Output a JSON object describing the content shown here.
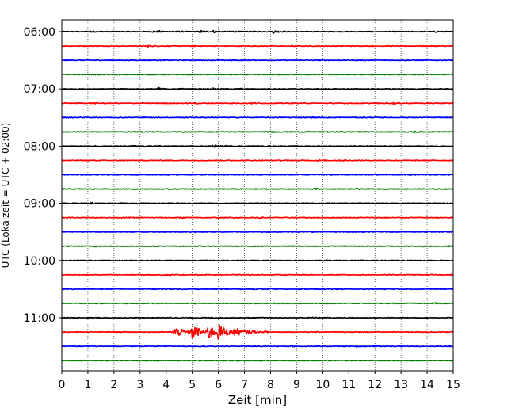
{
  "chart_data": {
    "type": "line",
    "title": "",
    "xlabel": "Zeit  [min]",
    "ylabel": "UTC (Lokalzeit = UTC + 02:00)",
    "xlim": [
      0,
      15
    ],
    "x_ticks": [
      0,
      1,
      2,
      3,
      4,
      5,
      6,
      7,
      8,
      9,
      10,
      11,
      12,
      13,
      14,
      15
    ],
    "x_gridlines": "dotted at every minute",
    "y_ticks": [
      "06:00",
      "07:00",
      "08:00",
      "09:00",
      "10:00",
      "11:00"
    ],
    "trace_interval_minutes": 15,
    "trace_colors": [
      "#000000",
      "#ff0000",
      "#0000ff",
      "#008000"
    ],
    "traces": [
      {
        "start": "06:00",
        "bursts": [
          [
            1.1,
            0.5
          ],
          [
            3.5,
            0.3
          ],
          [
            3.7,
            0.4
          ],
          [
            4.3,
            0.5
          ],
          [
            5.3,
            0.7
          ],
          [
            5.8,
            0.6
          ],
          [
            6.5,
            0.5
          ],
          [
            8.1,
            0.9
          ],
          [
            14.3,
            0.3
          ]
        ]
      },
      {
        "start": "06:15",
        "bursts": [
          [
            3.3,
            0.6
          ],
          [
            5.0,
            0.2
          ],
          [
            8.8,
            0.2
          ]
        ]
      },
      {
        "start": "06:30",
        "bursts": [
          [
            6.5,
            0.2
          ]
        ]
      },
      {
        "start": "06:45",
        "bursts": [
          [
            8.8,
            0.2
          ],
          [
            14.8,
            0.4
          ]
        ]
      },
      {
        "start": "07:00",
        "bursts": [
          [
            2.3,
            0.3
          ],
          [
            3.7,
            0.7
          ],
          [
            4.5,
            0.4
          ],
          [
            5.8,
            0.3
          ],
          [
            6.8,
            0.3
          ]
        ]
      },
      {
        "start": "07:15",
        "bursts": [
          [
            1.2,
            0.3
          ],
          [
            5.1,
            0.3
          ],
          [
            7.3,
            0.3
          ],
          [
            12.7,
            0.3
          ],
          [
            14.0,
            0.2
          ]
        ]
      },
      {
        "start": "07:30",
        "bursts": [
          [
            9.6,
            0.2
          ]
        ]
      },
      {
        "start": "07:45",
        "bursts": [
          [
            8.0,
            0.3
          ],
          [
            10.7,
            0.3
          ],
          [
            13.5,
            0.3
          ]
        ]
      },
      {
        "start": "08:00",
        "bursts": [
          [
            1.2,
            0.4
          ],
          [
            2.7,
            0.3
          ],
          [
            3.6,
            0.4
          ],
          [
            5.8,
            0.8
          ],
          [
            6.2,
            0.3
          ]
        ]
      },
      {
        "start": "08:15",
        "bursts": [
          [
            9.8,
            0.5
          ],
          [
            10.8,
            0.3
          ]
        ]
      },
      {
        "start": "08:30",
        "bursts": [
          [
            0.3,
            0.2
          ],
          [
            12.6,
            0.2
          ]
        ]
      },
      {
        "start": "08:45",
        "bursts": [
          [
            9.7,
            0.4
          ],
          [
            11.3,
            0.3
          ]
        ]
      },
      {
        "start": "09:00",
        "bursts": [
          [
            1.1,
            0.5
          ],
          [
            2.9,
            0.2
          ],
          [
            11.4,
            0.3
          ]
        ]
      },
      {
        "start": "09:15",
        "bursts": [
          [
            4.5,
            0.3
          ],
          [
            7.5,
            0.3
          ]
        ]
      },
      {
        "start": "09:30",
        "bursts": [
          [
            4.8,
            0.2
          ],
          [
            9.3,
            0.2
          ],
          [
            14.0,
            0.3
          ],
          [
            14.9,
            0.5
          ]
        ]
      },
      {
        "start": "09:45",
        "bursts": [
          [
            1.2,
            0.3
          ],
          [
            13.8,
            0.2
          ],
          [
            14.8,
            0.3
          ]
        ]
      },
      {
        "start": "10:00",
        "bursts": [
          [
            10.0,
            0.2
          ],
          [
            12.4,
            0.2
          ]
        ]
      },
      {
        "start": "10:15",
        "bursts": [
          [
            4.1,
            0.2
          ]
        ]
      },
      {
        "start": "10:30",
        "bursts": [
          [
            3.7,
            0.2
          ]
        ]
      },
      {
        "start": "10:45",
        "bursts": [
          [
            14.3,
            0.2
          ]
        ]
      },
      {
        "start": "11:00",
        "bursts": [
          [
            4.2,
            0.2
          ],
          [
            9.6,
            0.2
          ]
        ]
      },
      {
        "start": "11:15",
        "bursts": [
          [
            4.3,
            3.2
          ],
          [
            5.0,
            3.5
          ],
          [
            5.6,
            3.8
          ],
          [
            6.0,
            3.0
          ],
          [
            6.6,
            1.6
          ],
          [
            7.2,
            0.9
          ],
          [
            7.8,
            0.5
          ],
          [
            14.0,
            0.2
          ]
        ]
      },
      {
        "start": "11:30",
        "bursts": [
          [
            8.8,
            0.3
          ],
          [
            11.3,
            0.3
          ]
        ]
      },
      {
        "start": "11:45",
        "bursts": [
          [
            4.4,
            0.2
          ]
        ]
      }
    ]
  }
}
